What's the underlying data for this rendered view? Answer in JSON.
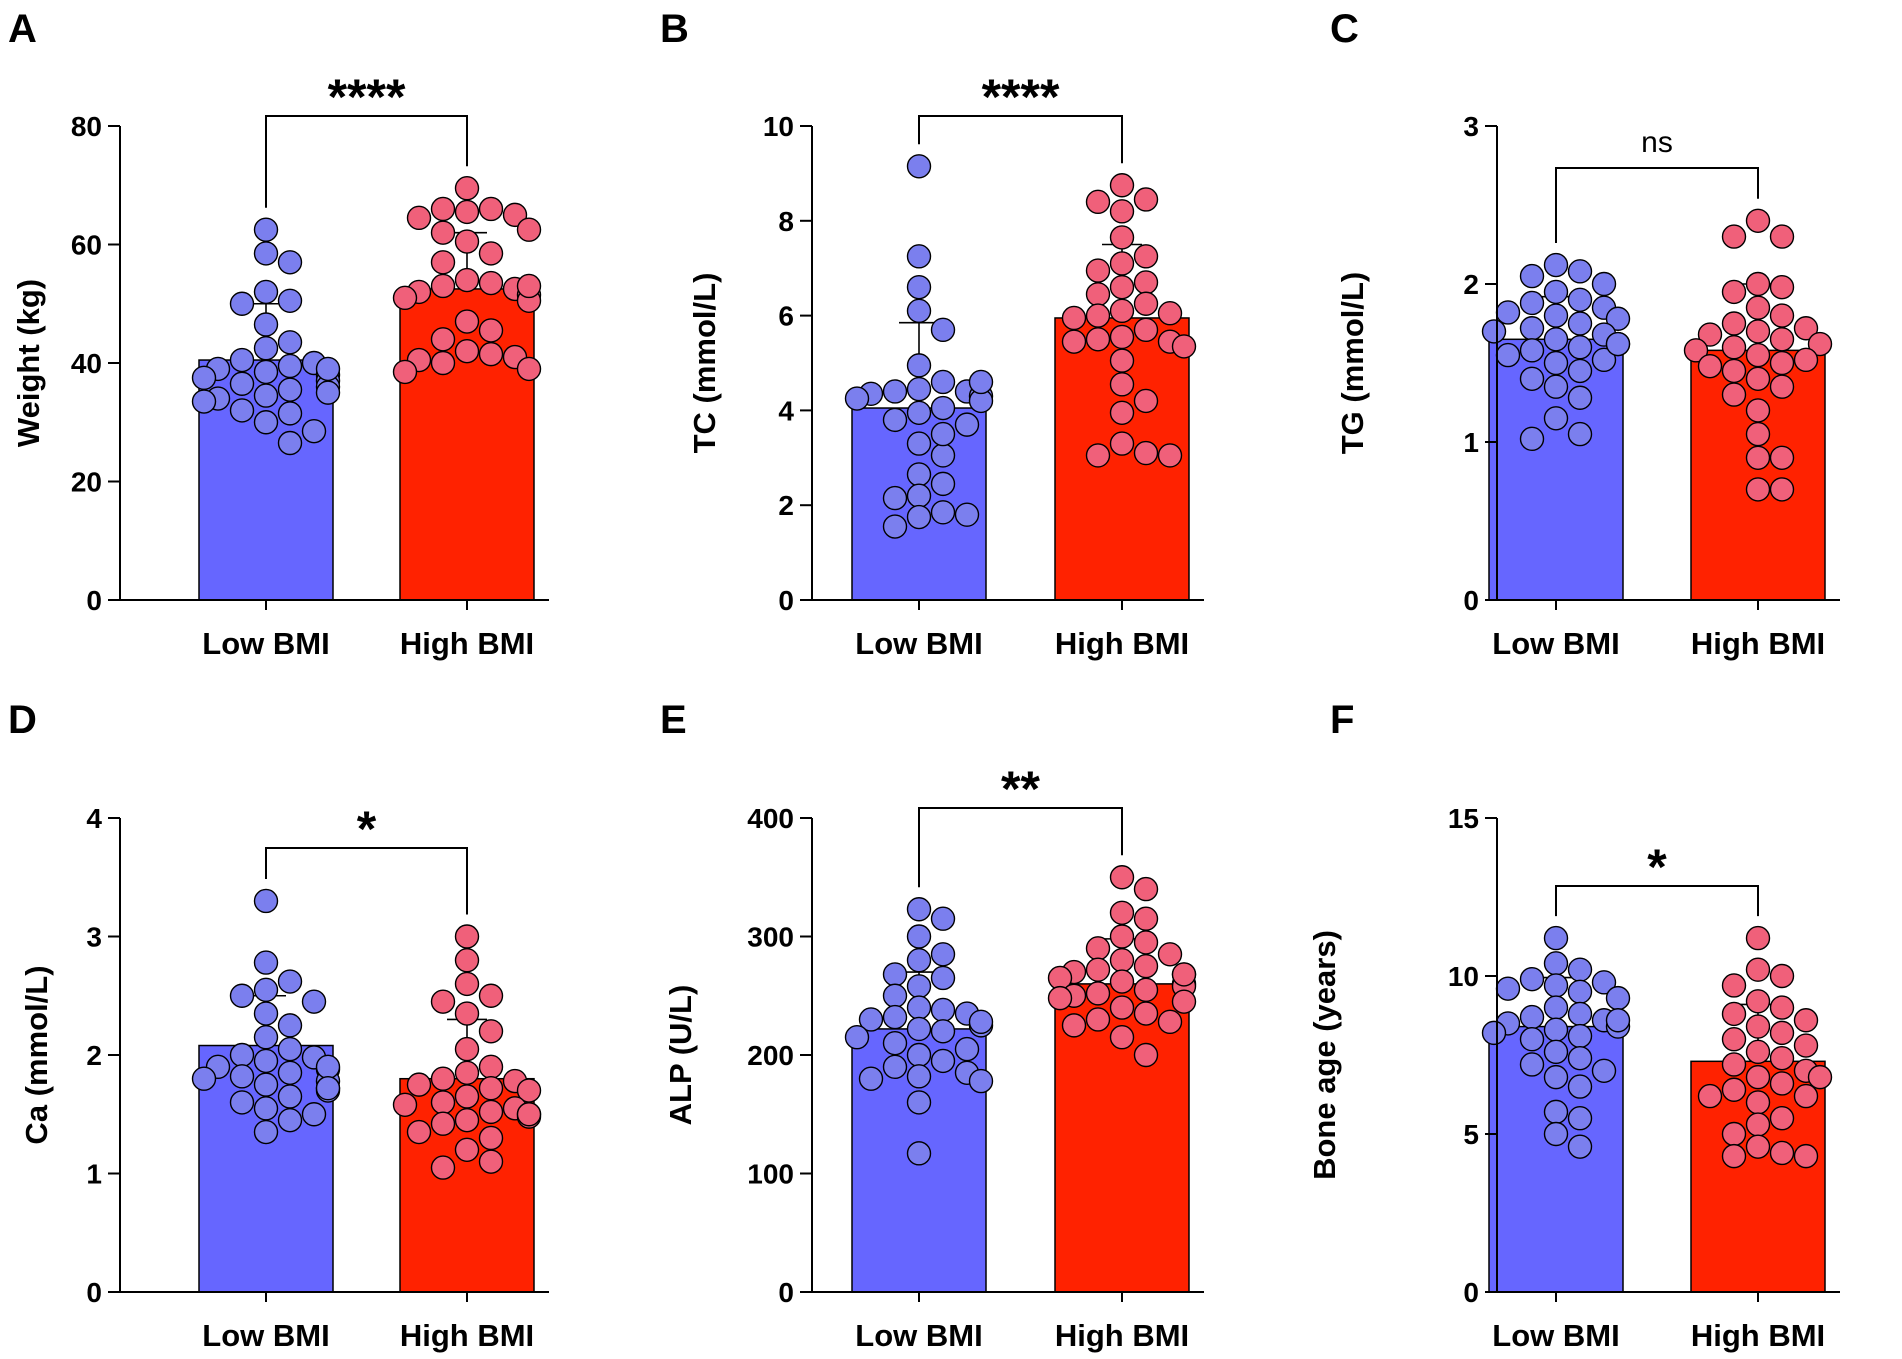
{
  "colors": {
    "low_bar": "#6666ff",
    "low_point": "#7b7fee",
    "high_bar": "#ff2200",
    "high_point": "#f0607a",
    "axis": "#000000"
  },
  "chart_data": [
    {
      "panel": "A",
      "type": "bar",
      "ylabel": "Weight (kg)",
      "ylim": [
        0,
        80
      ],
      "yticks": [
        "0",
        "20",
        "40",
        "60",
        "80"
      ],
      "categories": [
        "Low BMI",
        "High BMI"
      ],
      "series": [
        {
          "name": "Low BMI",
          "mean": 40.5,
          "sd": 9.5,
          "points": [
            62.5,
            58.5,
            57,
            52,
            50.5,
            50,
            46.5,
            43.5,
            42.5,
            40.5,
            40,
            39.5,
            39,
            38.5,
            38,
            37.5,
            37,
            36.5,
            36,
            35.5,
            35,
            34.5,
            34,
            33.5,
            32,
            31.5,
            30,
            28.5,
            26.5,
            39
          ]
        },
        {
          "name": "High BMI",
          "mean": 52.5,
          "sd": 9.5,
          "points": [
            69.5,
            66,
            66,
            65.5,
            65,
            64.5,
            62.5,
            60.5,
            58.5,
            57,
            54,
            53.5,
            53,
            52.5,
            52,
            51.5,
            51,
            50.5,
            47,
            45.5,
            44,
            42,
            41.5,
            41,
            40.5,
            40,
            39,
            38.5,
            62,
            53
          ]
        }
      ],
      "significance": "****"
    },
    {
      "panel": "B",
      "type": "bar",
      "ylabel": "TC (mmol/L)",
      "ylim": [
        0,
        10
      ],
      "yticks": [
        "0",
        "2",
        "4",
        "6",
        "8",
        "10"
      ],
      "categories": [
        "Low BMI",
        "High BMI"
      ],
      "series": [
        {
          "name": "Low BMI",
          "mean": 4.05,
          "sd": 1.8,
          "points": [
            9.15,
            7.25,
            6.6,
            6.1,
            5.7,
            4.95,
            4.6,
            4.45,
            4.4,
            4.4,
            4.35,
            4.3,
            4.25,
            4.2,
            4.05,
            3.95,
            3.8,
            3.7,
            3.3,
            3.05,
            2.65,
            2.45,
            2.2,
            2.15,
            1.85,
            1.8,
            1.75,
            1.55,
            4.6,
            3.5
          ]
        },
        {
          "name": "High BMI",
          "mean": 5.95,
          "sd": 1.55,
          "points": [
            8.75,
            8.45,
            8.4,
            8.2,
            7.65,
            7.25,
            7.1,
            6.95,
            6.7,
            6.6,
            6.45,
            6.25,
            6.1,
            6.05,
            6.0,
            5.95,
            5.7,
            5.55,
            5.5,
            5.45,
            5.45,
            5.35,
            5.05,
            4.55,
            4.2,
            3.95,
            3.3,
            3.1,
            3.05,
            3.05
          ]
        }
      ],
      "significance": "****"
    },
    {
      "panel": "C",
      "type": "bar",
      "ylabel": "TG (mmol/L)",
      "ylim": [
        0,
        3
      ],
      "yticks": [
        "0",
        "1",
        "2",
        "3"
      ],
      "categories": [
        "Low BMI",
        "High BMI"
      ],
      "series": [
        {
          "name": "Low BMI",
          "mean": 1.65,
          "sd": 0.27,
          "points": [
            2.12,
            2.08,
            2.05,
            2.0,
            1.95,
            1.9,
            1.88,
            1.85,
            1.82,
            1.8,
            1.78,
            1.75,
            1.72,
            1.7,
            1.68,
            1.65,
            1.62,
            1.6,
            1.58,
            1.55,
            1.52,
            1.5,
            1.45,
            1.4,
            1.35,
            1.28,
            1.15,
            1.05,
            1.02,
            1.62
          ]
        },
        {
          "name": "High BMI",
          "mean": 1.58,
          "sd": 0.42,
          "points": [
            2.4,
            2.3,
            2.3,
            2.0,
            1.98,
            1.95,
            1.85,
            1.8,
            1.75,
            1.72,
            1.7,
            1.68,
            1.65,
            1.62,
            1.6,
            1.58,
            1.55,
            1.52,
            1.5,
            1.48,
            1.45,
            1.4,
            1.35,
            1.3,
            1.2,
            1.05,
            0.9,
            0.9,
            0.7,
            0.7
          ]
        }
      ],
      "significance": "ns"
    },
    {
      "panel": "D",
      "type": "bar",
      "ylabel": "Ca (mmol/L)",
      "ylim": [
        0,
        4
      ],
      "yticks": [
        "0",
        "1",
        "2",
        "3",
        "4"
      ],
      "categories": [
        "Low BMI",
        "High BMI"
      ],
      "series": [
        {
          "name": "Low BMI",
          "mean": 2.08,
          "sd": 0.42,
          "points": [
            3.3,
            2.78,
            2.62,
            2.55,
            2.5,
            2.45,
            2.35,
            2.25,
            2.15,
            2.05,
            2.0,
            1.98,
            1.95,
            1.9,
            1.88,
            1.85,
            1.82,
            1.8,
            1.78,
            1.75,
            1.72,
            1.7,
            1.65,
            1.6,
            1.55,
            1.5,
            1.45,
            1.35,
            1.9,
            1.72
          ]
        },
        {
          "name": "High BMI",
          "mean": 1.8,
          "sd": 0.5,
          "points": [
            3.0,
            2.8,
            2.6,
            2.5,
            2.45,
            2.35,
            2.2,
            2.05,
            1.9,
            1.85,
            1.8,
            1.78,
            1.75,
            1.72,
            1.7,
            1.65,
            1.6,
            1.58,
            1.55,
            1.52,
            1.5,
            1.48,
            1.45,
            1.42,
            1.35,
            1.3,
            1.2,
            1.1,
            1.05,
            1.5
          ]
        }
      ],
      "significance": "*"
    },
    {
      "panel": "E",
      "type": "bar",
      "ylabel": "ALP (U/L)",
      "ylim": [
        0,
        400
      ],
      "yticks": [
        "0",
        "100",
        "200",
        "300",
        "400"
      ],
      "categories": [
        "Low BMI",
        "High BMI"
      ],
      "series": [
        {
          "name": "Low BMI",
          "mean": 222,
          "sd": 48,
          "points": [
            323,
            315,
            300,
            285,
            280,
            268,
            265,
            258,
            250,
            240,
            238,
            235,
            232,
            230,
            225,
            222,
            220,
            215,
            210,
            205,
            200,
            195,
            190,
            185,
            182,
            180,
            178,
            160,
            117,
            228
          ]
        },
        {
          "name": "High BMI",
          "mean": 260,
          "sd": 38,
          "points": [
            350,
            340,
            320,
            315,
            300,
            295,
            290,
            285,
            280,
            275,
            272,
            270,
            268,
            265,
            262,
            260,
            258,
            255,
            252,
            250,
            248,
            245,
            240,
            235,
            230,
            228,
            225,
            215,
            200,
            268
          ]
        }
      ],
      "significance": "**"
    },
    {
      "panel": "F",
      "type": "bar",
      "ylabel": "Bone age (years)",
      "ylim": [
        0,
        15
      ],
      "yticks": [
        "0",
        "5",
        "10",
        "15"
      ],
      "categories": [
        "Low BMI",
        "High BMI"
      ],
      "series": [
        {
          "name": "Low BMI",
          "mean": 8.4,
          "sd": 1.55,
          "points": [
            11.2,
            10.4,
            10.2,
            9.9,
            9.8,
            9.7,
            9.6,
            9.5,
            9.3,
            9.0,
            8.8,
            8.7,
            8.6,
            8.5,
            8.4,
            8.3,
            8.2,
            8.1,
            8.0,
            7.6,
            7.4,
            7.2,
            7.0,
            6.8,
            6.5,
            5.7,
            5.5,
            5.0,
            4.6,
            8.6
          ]
        },
        {
          "name": "High BMI",
          "mean": 7.3,
          "sd": 1.8,
          "points": [
            11.2,
            10.2,
            10.0,
            9.7,
            9.2,
            9.0,
            8.8,
            8.6,
            8.4,
            8.2,
            8.0,
            7.8,
            7.6,
            7.4,
            7.2,
            7.0,
            6.8,
            6.6,
            6.4,
            6.2,
            6.2,
            6.0,
            5.5,
            5.3,
            5.0,
            4.6,
            4.4,
            4.3,
            4.3,
            6.8
          ]
        }
      ],
      "significance": "*"
    }
  ]
}
